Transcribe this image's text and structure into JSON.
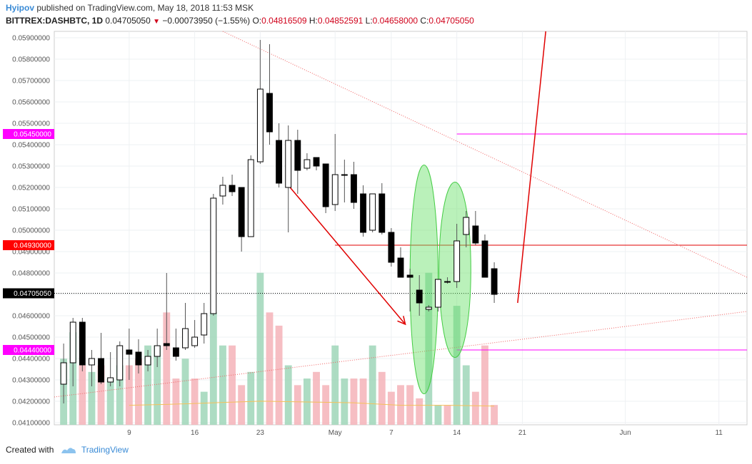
{
  "header": {
    "author": "Hyipov",
    "published_text": "published on TradingView.com, May 18, 2018 11:53 MSK",
    "symbol": "BITTREX:DASHBTC, 1D",
    "last": "0.04705050",
    "arrow": "▼",
    "change": "−0.00073950 (−1.55%)",
    "o_label": "O:",
    "o_value": "0.04816509",
    "h_label": "H:",
    "h_value": "0.04852591",
    "l_label": "L:",
    "l_value": "0.04658000",
    "c_label": "C:",
    "c_value": "0.04705050"
  },
  "footer": {
    "created_with": "Created with",
    "brand": "TradingView"
  },
  "colors": {
    "up_body": "#ffffff",
    "down_body": "#000000",
    "wick": "#555555",
    "vol_up": "#9fd6b8",
    "vol_down": "#f4b3b8",
    "magenta": "#ff00ff",
    "red": "#e00000",
    "ellipse": "#66e066",
    "ma": "#f5c15a"
  },
  "chart_data": {
    "type": "candlestick",
    "y_range": [
      0.0409,
      0.0593
    ],
    "y_ticks": [
      "0.04100000",
      "0.04200000",
      "0.04300000",
      "0.04400000",
      "0.04500000",
      "0.04600000",
      "0.04700000",
      "0.04800000",
      "0.04900000",
      "0.05000000",
      "0.05100000",
      "0.05200000",
      "0.05300000",
      "0.05400000",
      "0.05500000",
      "0.05600000",
      "0.05700000",
      "0.05800000",
      "0.05900000"
    ],
    "x_ticks": [
      {
        "label": "9",
        "day": 9
      },
      {
        "label": "16",
        "day": 16
      },
      {
        "label": "23",
        "day": 23
      },
      {
        "label": "May",
        "day": 31
      },
      {
        "label": "7",
        "day": 37
      },
      {
        "label": "14",
        "day": 44
      },
      {
        "label": "21",
        "day": 51
      },
      {
        "label": "Jun",
        "day": 62
      },
      {
        "label": "11",
        "day": 72
      }
    ],
    "x_range": [
      1,
      75
    ],
    "price_tags": [
      {
        "label": "0.05450000",
        "value": 0.0545,
        "color": "#ff00ff"
      },
      {
        "label": "0.04930000",
        "value": 0.0493,
        "color": "#ff0000"
      },
      {
        "label": "0.04705050",
        "value": 0.04705,
        "color": "#000000"
      },
      {
        "label": "0.04440000",
        "value": 0.0444,
        "color": "#ff00ff"
      }
    ],
    "candles": [
      {
        "d": 2,
        "o": 0.0428,
        "h": 0.0447,
        "l": 0.0419,
        "c": 0.0438
      },
      {
        "d": 3,
        "o": 0.0438,
        "h": 0.0459,
        "l": 0.0427,
        "c": 0.0457
      },
      {
        "d": 4,
        "o": 0.0457,
        "h": 0.0459,
        "l": 0.0434,
        "c": 0.0437
      },
      {
        "d": 5,
        "o": 0.0437,
        "h": 0.0444,
        "l": 0.0427,
        "c": 0.044
      },
      {
        "d": 6,
        "o": 0.044,
        "h": 0.0452,
        "l": 0.0428,
        "c": 0.0429
      },
      {
        "d": 7,
        "o": 0.0429,
        "h": 0.0443,
        "l": 0.0427,
        "c": 0.0431
      },
      {
        "d": 8,
        "o": 0.043,
        "h": 0.0448,
        "l": 0.0427,
        "c": 0.0446
      },
      {
        "d": 9,
        "o": 0.0444,
        "h": 0.0454,
        "l": 0.043,
        "c": 0.0442
      },
      {
        "d": 10,
        "o": 0.0443,
        "h": 0.0449,
        "l": 0.0433,
        "c": 0.0437
      },
      {
        "d": 11,
        "o": 0.0437,
        "h": 0.0444,
        "l": 0.0434,
        "c": 0.0441
      },
      {
        "d": 12,
        "o": 0.0441,
        "h": 0.0454,
        "l": 0.0436,
        "c": 0.0446
      },
      {
        "d": 13,
        "o": 0.0447,
        "h": 0.048,
        "l": 0.0444,
        "c": 0.0446
      },
      {
        "d": 14,
        "o": 0.0445,
        "h": 0.0454,
        "l": 0.0439,
        "c": 0.0441
      },
      {
        "d": 15,
        "o": 0.0445,
        "h": 0.0466,
        "l": 0.0444,
        "c": 0.0454
      },
      {
        "d": 16,
        "o": 0.0446,
        "h": 0.0458,
        "l": 0.0445,
        "c": 0.045
      },
      {
        "d": 17,
        "o": 0.0451,
        "h": 0.0466,
        "l": 0.0447,
        "c": 0.0461
      },
      {
        "d": 18,
        "o": 0.0461,
        "h": 0.0517,
        "l": 0.046,
        "c": 0.0515
      },
      {
        "d": 19,
        "o": 0.0516,
        "h": 0.0525,
        "l": 0.0512,
        "c": 0.0521
      },
      {
        "d": 20,
        "o": 0.0521,
        "h": 0.0526,
        "l": 0.0516,
        "c": 0.0518
      },
      {
        "d": 21,
        "o": 0.052,
        "h": 0.052,
        "l": 0.049,
        "c": 0.0497
      },
      {
        "d": 22,
        "o": 0.0497,
        "h": 0.0535,
        "l": 0.0497,
        "c": 0.0533
      },
      {
        "d": 23,
        "o": 0.0532,
        "h": 0.0589,
        "l": 0.0531,
        "c": 0.0566
      },
      {
        "d": 24,
        "o": 0.0564,
        "h": 0.0587,
        "l": 0.054,
        "c": 0.0546
      },
      {
        "d": 25,
        "o": 0.0542,
        "h": 0.055,
        "l": 0.052,
        "c": 0.0522
      },
      {
        "d": 26,
        "o": 0.052,
        "h": 0.0549,
        "l": 0.0499,
        "c": 0.0542
      },
      {
        "d": 27,
        "o": 0.0542,
        "h": 0.0547,
        "l": 0.0517,
        "c": 0.0528
      },
      {
        "d": 28,
        "o": 0.0529,
        "h": 0.0536,
        "l": 0.0528,
        "c": 0.0533
      },
      {
        "d": 29,
        "o": 0.0534,
        "h": 0.0533,
        "l": 0.0528,
        "c": 0.053
      },
      {
        "d": 30,
        "o": 0.0531,
        "h": 0.0531,
        "l": 0.0508,
        "c": 0.0511
      },
      {
        "d": 31,
        "o": 0.0512,
        "h": 0.0545,
        "l": 0.0509,
        "c": 0.0526
      },
      {
        "d": 32,
        "o": 0.0526,
        "h": 0.0533,
        "l": 0.0513,
        "c": 0.0526
      },
      {
        "d": 33,
        "o": 0.0526,
        "h": 0.0532,
        "l": 0.051,
        "c": 0.0513
      },
      {
        "d": 34,
        "o": 0.0517,
        "h": 0.0521,
        "l": 0.0497,
        "c": 0.0499
      },
      {
        "d": 35,
        "o": 0.05,
        "h": 0.0517,
        "l": 0.0499,
        "c": 0.0517
      },
      {
        "d": 36,
        "o": 0.0517,
        "h": 0.0522,
        "l": 0.0498,
        "c": 0.0499
      },
      {
        "d": 37,
        "o": 0.0499,
        "h": 0.0501,
        "l": 0.0483,
        "c": 0.0485
      },
      {
        "d": 38,
        "o": 0.0487,
        "h": 0.0492,
        "l": 0.0479,
        "c": 0.0478
      },
      {
        "d": 39,
        "o": 0.0479,
        "h": 0.0482,
        "l": 0.0462,
        "c": 0.0478
      },
      {
        "d": 40,
        "o": 0.0472,
        "h": 0.0479,
        "l": 0.046,
        "c": 0.0466
      },
      {
        "d": 41,
        "o": 0.0463,
        "h": 0.0465,
        "l": 0.0462,
        "c": 0.0464
      },
      {
        "d": 42,
        "o": 0.0464,
        "h": 0.0477,
        "l": 0.0462,
        "c": 0.0477
      },
      {
        "d": 43,
        "o": 0.0476,
        "h": 0.0478,
        "l": 0.0475,
        "c": 0.0476
      },
      {
        "d": 44,
        "o": 0.0476,
        "h": 0.0503,
        "l": 0.0473,
        "c": 0.0495
      },
      {
        "d": 45,
        "o": 0.0498,
        "h": 0.0509,
        "l": 0.0492,
        "c": 0.0506
      },
      {
        "d": 46,
        "o": 0.0502,
        "h": 0.0509,
        "l": 0.0493,
        "c": 0.0494
      },
      {
        "d": 47,
        "o": 0.0495,
        "h": 0.0498,
        "l": 0.0478,
        "c": 0.0478
      },
      {
        "d": 48,
        "o": 0.0482,
        "h": 0.0485,
        "l": 0.0466,
        "c": 0.047
      }
    ],
    "volumes": [
      {
        "d": 2,
        "v": 0.1,
        "up": true
      },
      {
        "d": 3,
        "v": 0.14,
        "up": true
      },
      {
        "d": 4,
        "v": 0.09,
        "up": false
      },
      {
        "d": 5,
        "v": 0.08,
        "up": true
      },
      {
        "d": 6,
        "v": 0.09,
        "up": false
      },
      {
        "d": 7,
        "v": 0.07,
        "up": true
      },
      {
        "d": 8,
        "v": 0.09,
        "up": true
      },
      {
        "d": 9,
        "v": 0.09,
        "up": false
      },
      {
        "d": 10,
        "v": 0.1,
        "up": false
      },
      {
        "d": 11,
        "v": 0.12,
        "up": true
      },
      {
        "d": 12,
        "v": 0.12,
        "up": true
      },
      {
        "d": 13,
        "v": 0.17,
        "up": false
      },
      {
        "d": 14,
        "v": 0.07,
        "up": false
      },
      {
        "d": 15,
        "v": 0.1,
        "up": true
      },
      {
        "d": 16,
        "v": 0.07,
        "up": false
      },
      {
        "d": 17,
        "v": 0.05,
        "up": true
      },
      {
        "d": 18,
        "v": 0.17,
        "up": true
      },
      {
        "d": 19,
        "v": 0.12,
        "up": true
      },
      {
        "d": 20,
        "v": 0.12,
        "up": false
      },
      {
        "d": 21,
        "v": 0.06,
        "up": false
      },
      {
        "d": 22,
        "v": 0.08,
        "up": true
      },
      {
        "d": 23,
        "v": 0.23,
        "up": true
      },
      {
        "d": 24,
        "v": 0.17,
        "up": false
      },
      {
        "d": 25,
        "v": 0.15,
        "up": false
      },
      {
        "d": 26,
        "v": 0.09,
        "up": true
      },
      {
        "d": 27,
        "v": 0.06,
        "up": false
      },
      {
        "d": 28,
        "v": 0.07,
        "up": true
      },
      {
        "d": 29,
        "v": 0.08,
        "up": false
      },
      {
        "d": 30,
        "v": 0.06,
        "up": false
      },
      {
        "d": 31,
        "v": 0.12,
        "up": true
      },
      {
        "d": 32,
        "v": 0.07,
        "up": true
      },
      {
        "d": 33,
        "v": 0.07,
        "up": false
      },
      {
        "d": 34,
        "v": 0.07,
        "up": false
      },
      {
        "d": 35,
        "v": 0.12,
        "up": true
      },
      {
        "d": 36,
        "v": 0.08,
        "up": false
      },
      {
        "d": 37,
        "v": 0.05,
        "up": false
      },
      {
        "d": 38,
        "v": 0.06,
        "up": false
      },
      {
        "d": 39,
        "v": 0.06,
        "up": false
      },
      {
        "d": 40,
        "v": 0.04,
        "up": false
      },
      {
        "d": 41,
        "v": 0.23,
        "up": true
      },
      {
        "d": 42,
        "v": 0.03,
        "up": true
      },
      {
        "d": 43,
        "v": 0.03,
        "up": false
      },
      {
        "d": 44,
        "v": 0.18,
        "up": true
      },
      {
        "d": 45,
        "v": 0.09,
        "up": true
      },
      {
        "d": 46,
        "v": 0.05,
        "up": false
      },
      {
        "d": 47,
        "v": 0.12,
        "up": false
      },
      {
        "d": 48,
        "v": 0.03,
        "up": false
      }
    ],
    "volume_max": 0.25,
    "moving_average": [
      [
        9,
        0.0427
      ],
      [
        13,
        0.0428
      ],
      [
        18,
        0.043
      ],
      [
        23,
        0.0432
      ],
      [
        28,
        0.0431
      ],
      [
        33,
        0.043
      ],
      [
        38,
        0.0427
      ],
      [
        43,
        0.0427
      ],
      [
        48,
        0.0426
      ]
    ],
    "drawings": [
      {
        "kind": "hline",
        "name": "resistance-line-magenta",
        "value": 0.0545,
        "from_day": 44,
        "color": "#ff00ff"
      },
      {
        "kind": "hline",
        "name": "resistance-line-red",
        "value": 0.0493,
        "from_day": 31,
        "color": "#e00000"
      },
      {
        "kind": "hline",
        "name": "support-line-magenta",
        "value": 0.0444,
        "from_day": 44,
        "color": "#ff00ff"
      },
      {
        "kind": "hline-dotted",
        "name": "last-price-line",
        "value": 0.04705,
        "from_day": 1,
        "color": "#000000"
      },
      {
        "kind": "trend-dotted",
        "name": "down-trendline",
        "p1": [
          19,
          0.0593
        ],
        "p2": [
          75,
          0.0478
        ],
        "color": "#f06060"
      },
      {
        "kind": "trend-dotted",
        "name": "up-trendline",
        "p1": [
          1,
          0.0422
        ],
        "p2": [
          75,
          0.0462
        ],
        "color": "#f06060"
      },
      {
        "kind": "arrow",
        "name": "down-arrow",
        "p1": [
          26,
          0.0521
        ],
        "p2": [
          38.5,
          0.0456
        ],
        "color": "#e00000"
      },
      {
        "kind": "line",
        "name": "projection-line",
        "p1": [
          50.5,
          0.0466
        ],
        "p2": [
          53.5,
          0.0593
        ],
        "color": "#e00000"
      },
      {
        "kind": "ellipse",
        "name": "highlight-ellipse-1",
        "cx": 40.5,
        "cy": 0.0477,
        "rx": 1.5,
        "ry": 0.00535,
        "color": "#66e066"
      },
      {
        "kind": "ellipse",
        "name": "highlight-ellipse-2",
        "cx": 43.8,
        "cy": 0.04815,
        "rx": 1.7,
        "ry": 0.0041,
        "color": "#66e066"
      }
    ]
  }
}
